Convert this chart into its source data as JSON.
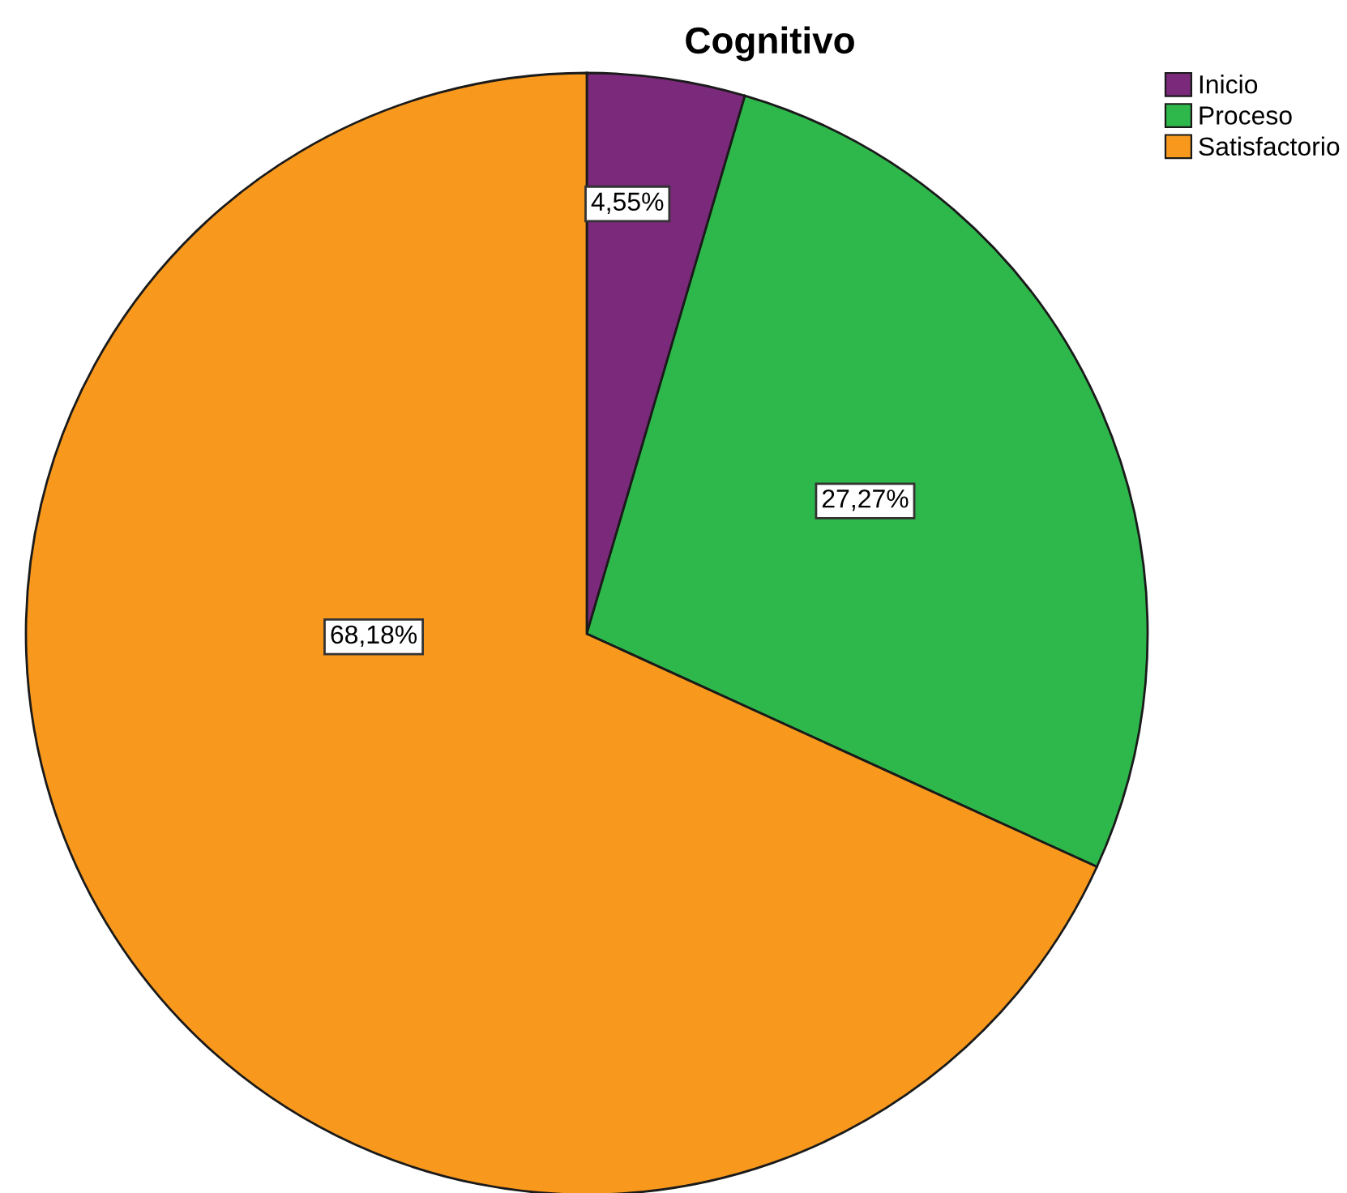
{
  "chart_data": {
    "type": "pie",
    "title": "Cognitivo",
    "categories": [
      "Inicio",
      "Proceso",
      "Satisfactorio"
    ],
    "values": [
      4.55,
      27.27,
      68.18
    ],
    "value_labels": [
      "4,55%",
      "27,27%",
      "68,18%"
    ],
    "colors": [
      "#7a297b",
      "#2eb84b",
      "#f8991e"
    ],
    "legend": "top right"
  }
}
